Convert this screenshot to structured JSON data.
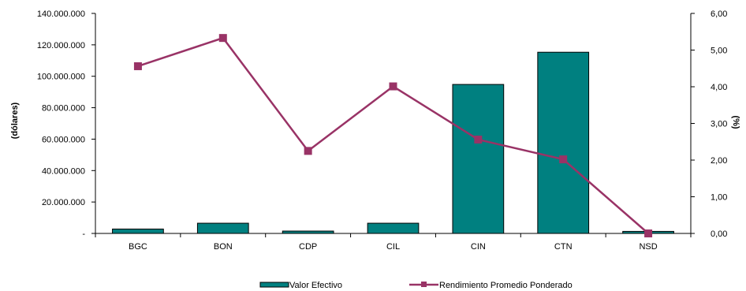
{
  "chart_data": {
    "type": "bar",
    "categories": [
      "BGC",
      "BON",
      "CDP",
      "CIL",
      "CIN",
      "CTN",
      "NSD"
    ],
    "series": [
      {
        "name": "Valor Efectivo",
        "type": "bar",
        "axis": "left",
        "color": "#008080",
        "values": [
          2800000,
          6500000,
          1500000,
          6500000,
          94800000,
          115300000,
          1300000
        ]
      },
      {
        "name": "Rendimiento Promedio Ponderado",
        "type": "line",
        "axis": "right",
        "color": "#993366",
        "values": [
          4.56,
          5.33,
          2.25,
          4.01,
          2.56,
          2.02,
          0.0
        ]
      }
    ],
    "ylabel": "(dólares)",
    "y2label": "(%)",
    "ylim": [
      0,
      140000000
    ],
    "y2lim": [
      0,
      6
    ],
    "yticks": [
      "-",
      "20.000.000",
      "40.000.000",
      "60.000.000",
      "80.000.000",
      "100.000.000",
      "120.000.000",
      "140.000.000"
    ],
    "y2ticks": [
      "0,00",
      "1,00",
      "2,00",
      "3,00",
      "4,00",
      "5,00",
      "6,00"
    ],
    "grid": false,
    "legend_position": "bottom"
  }
}
